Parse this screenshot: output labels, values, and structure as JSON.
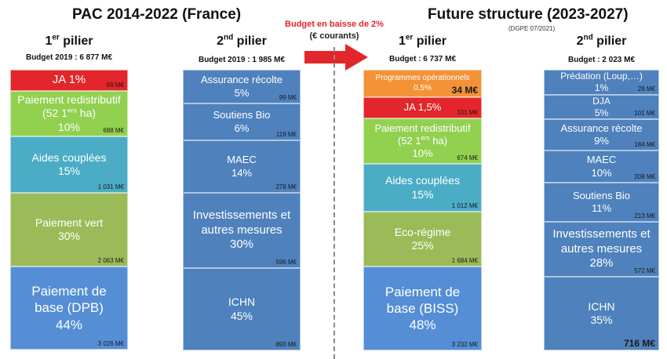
{
  "left_title": "PAC 2014-2022 (France)",
  "right_title": "Future structure (2023-2027)",
  "right_subtitle": "(DGPE 07/2021)",
  "arrow": {
    "line1": "Budget en baisse de 2%",
    "line2": "(€ courants)",
    "color": "#e3262b"
  },
  "columns": [
    {
      "id": "col-2014-p1",
      "pillar_num": "1",
      "pillar_sup": "er",
      "pillar_word": " pilier",
      "budget": "Budget 2019 : 6 877 M€",
      "blocks": [
        {
          "name": "ja",
          "l1": "JA 1%",
          "amount": "69 M€",
          "color": "red",
          "size": 15
        },
        {
          "name": "paiement-redistributif",
          "l1": "Paiement redistributif",
          "l2a": "(52 1",
          "l2sup": "ers",
          "l2b": " ha)",
          "l3": "10%",
          "amount": "688 M€",
          "color": "green",
          "size": 14
        },
        {
          "name": "aides-couplees",
          "l1": "Aides couplées",
          "l2": "15%",
          "amount": "1 031 M€",
          "color": "teal",
          "size": 14
        },
        {
          "name": "paiement-vert",
          "l1": "Paiement vert",
          "l2": "30%",
          "amount": "2 063 M€",
          "color": "olive",
          "size": 14
        },
        {
          "name": "paiement-de-base",
          "l1": "Paiement de",
          "l2": "base (DPB)",
          "l3": "44%",
          "amount": "3 026 M€",
          "color": "blue",
          "size": 17
        }
      ]
    },
    {
      "id": "col-2014-p2",
      "pillar_num": "2",
      "pillar_sup": "nd",
      "pillar_word": " pilier",
      "budget": "Budget 2019 : 1 985 M€",
      "blocks": [
        {
          "name": "assurance-recolte",
          "l1": "Assurance récolte",
          "l2": "5%",
          "amount": "99 M€",
          "color": "navy",
          "size": 13
        },
        {
          "name": "soutiens-bio",
          "l1": "Soutiens Bio",
          "l2": "6%",
          "amount": "119 M€",
          "color": "navy",
          "size": 13
        },
        {
          "name": "maec",
          "l1": "MAEC",
          "l2": "14%",
          "amount": "278 M€",
          "color": "navy",
          "size": 13
        },
        {
          "name": "investissements",
          "l1": "Investissements et",
          "l2": "autres mesures",
          "l3": "30%",
          "amount": "596 M€",
          "color": "navy",
          "size": 15
        },
        {
          "name": "ichn",
          "l1": "ICHN",
          "l2": "45%",
          "amount": "893 M€",
          "color": "navy",
          "size": 14
        }
      ]
    },
    {
      "id": "col-2023-p1",
      "pillar_num": "1",
      "pillar_sup": "er",
      "pillar_word": " pilier",
      "budget": "Budget : 6 737 M€",
      "blocks": [
        {
          "name": "programmes-operationnels",
          "l1": "Programmes opérationnels",
          "l2": "0,5%",
          "amount": "34 M€",
          "amount_big": true,
          "color": "orange",
          "size": 10
        },
        {
          "name": "ja",
          "l1": "JA 1,5%",
          "amount": "101 M€",
          "color": "red",
          "size": 13
        },
        {
          "name": "paiement-redistributif",
          "l1": "Paiement redistributif",
          "l2a": "(52 1",
          "l2sup": "ers",
          "l2b": " ha)",
          "l3": "10%",
          "amount": "674 M€",
          "color": "green",
          "size": 13
        },
        {
          "name": "aides-couplees",
          "l1": "Aides couplées",
          "l2": "15%",
          "amount": "1 012 M€",
          "color": "teal",
          "size": 14
        },
        {
          "name": "eco-regime",
          "l1": "Eco-régime",
          "l2": "25%",
          "amount": "1 684 M€",
          "color": "olive",
          "size": 14
        },
        {
          "name": "paiement-de-base",
          "l1": "Paiement de",
          "l2": "base (BISS)",
          "l3": "48%",
          "amount": "3 232 M€",
          "color": "blue",
          "size": 17
        }
      ]
    },
    {
      "id": "col-2023-p2",
      "pillar_num": "2",
      "pillar_sup": "nd",
      "pillar_word": " pilier",
      "budget": "Budget : 2 023 M€",
      "blocks": [
        {
          "name": "predation",
          "l1": "Prédation (Loup,…)",
          "l2": "1%",
          "amount": "28 M€",
          "color": "navy",
          "size": 12
        },
        {
          "name": "dja",
          "l1": "DJA",
          "l2": "5%",
          "amount": "101 M€",
          "color": "navy",
          "size": 12
        },
        {
          "name": "assurance-recolte",
          "l1": "Assurance récolte",
          "l2": "9%",
          "amount": "184 M€",
          "color": "navy",
          "size": 13
        },
        {
          "name": "maec",
          "l1": "MAEC",
          "l2": "10%",
          "amount": "208 M€",
          "color": "navy",
          "size": 13
        },
        {
          "name": "soutiens-bio",
          "l1": "Soutiens Bio",
          "l2": "11%",
          "amount": "213 M€",
          "color": "navy",
          "size": 13
        },
        {
          "name": "investissements",
          "l1": "Investissements et",
          "l2": "autres mesures",
          "l3": "28%",
          "amount": "572 M€",
          "color": "navy",
          "size": 15
        },
        {
          "name": "ichn",
          "l1": "ICHN",
          "l2": "35%",
          "amount": "716 M€",
          "amount_big": true,
          "color": "navy",
          "size": 14
        }
      ]
    }
  ]
}
